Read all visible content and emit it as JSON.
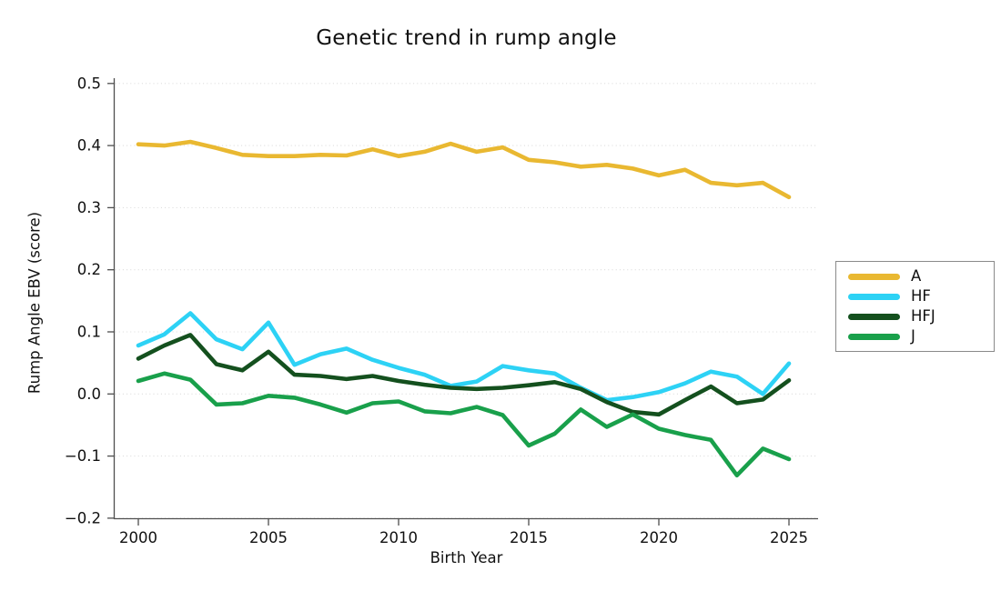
{
  "chart_data": {
    "type": "line",
    "title": "Genetic trend in rump angle",
    "xlabel": "Birth Year",
    "ylabel": "Rump Angle EBV (score)",
    "xlim": [
      2000,
      2025
    ],
    "ylim": [
      -0.2,
      0.5
    ],
    "x_ticks": [
      2000,
      2005,
      2010,
      2015,
      2020,
      2025
    ],
    "y_ticks": [
      0.5,
      0.4,
      0.3,
      0.2,
      0.1,
      0.0,
      -0.1,
      -0.2
    ],
    "grid": "horizontal-dotted",
    "legend_position": "right-outside",
    "axis_color": "#4f4f4f",
    "grid_color": "#dbdbdb",
    "x": [
      2000,
      2001,
      2002,
      2003,
      2004,
      2005,
      2006,
      2007,
      2008,
      2009,
      2010,
      2011,
      2012,
      2013,
      2014,
      2015,
      2016,
      2017,
      2018,
      2019,
      2020,
      2021,
      2022,
      2023,
      2024,
      2025
    ],
    "series": [
      {
        "name": "A",
        "color": "#E9B831",
        "values": [
          0.402,
          0.4,
          0.406,
          0.396,
          0.385,
          0.383,
          0.383,
          0.385,
          0.384,
          0.394,
          0.383,
          0.39,
          0.403,
          0.39,
          0.397,
          0.377,
          0.373,
          0.366,
          0.369,
          0.363,
          0.352,
          0.361,
          0.34,
          0.336,
          0.34,
          0.317
        ]
      },
      {
        "name": "HF",
        "color": "#2DD2F5",
        "values": [
          0.078,
          0.096,
          0.13,
          0.088,
          0.072,
          0.115,
          0.047,
          0.064,
          0.073,
          0.055,
          0.042,
          0.031,
          0.013,
          0.02,
          0.045,
          0.038,
          0.033,
          0.01,
          -0.01,
          -0.005,
          0.003,
          0.017,
          0.036,
          0.028,
          0.0,
          0.049
        ]
      },
      {
        "name": "HFJ",
        "color": "#14501E",
        "values": [
          0.057,
          0.078,
          0.095,
          0.048,
          0.038,
          0.068,
          0.031,
          0.029,
          0.024,
          0.029,
          0.021,
          0.015,
          0.01,
          0.008,
          0.01,
          0.014,
          0.019,
          0.008,
          -0.013,
          -0.029,
          -0.033,
          -0.01,
          0.012,
          -0.015,
          -0.009,
          0.022
        ]
      },
      {
        "name": "J",
        "color": "#19A04B",
        "values": [
          0.021,
          0.033,
          0.023,
          -0.017,
          -0.015,
          -0.003,
          -0.006,
          -0.017,
          -0.03,
          -0.015,
          -0.012,
          -0.028,
          -0.031,
          -0.021,
          -0.034,
          -0.083,
          -0.064,
          -0.025,
          -0.053,
          -0.033,
          -0.056,
          -0.066,
          -0.074,
          -0.131,
          -0.088,
          -0.105
        ]
      }
    ]
  }
}
